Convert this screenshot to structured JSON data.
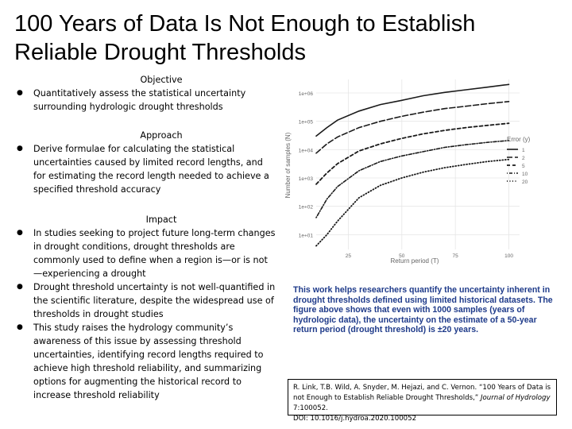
{
  "slide": {
    "title": "100 Years of Data Is Not Enough to Establish Reliable Drought Thresholds",
    "sections": [
      {
        "heading": "Objective",
        "bullets": [
          "Quantitatively assess the statistical uncertainty surrounding hydrologic drought thresholds"
        ]
      },
      {
        "heading": "Approach",
        "bullets": [
          "Derive formulae for calculating the statistical uncertainties caused by limited record lengths, and for estimating the record length needed to achieve a specified threshold accuracy"
        ]
      },
      {
        "heading": "Impact",
        "bullets": [
          "In studies seeking to project future long-term changes in drought conditions, drought thresholds are commonly used to define when a region is—or is not—experiencing a drought",
          "Drought threshold uncertainty is not well-quantified in the scientific literature, despite the widespread use of thresholds in drought studies",
          "This study raises the hydrology community’s awareness of this issue by assessing threshold uncertainties, identifying record lengths required to achieve high threshold reliability, and summarizing options for augmenting the historical record to increase threshold reliability"
        ]
      }
    ],
    "summary": "This work helps researchers quantify the uncertainty inherent in drought thresholds defined using limited historical datasets. The figure above shows that even with 1000 samples (years of hydrologic data), the uncertainty on the estimate of a 50-year return period (drought threshold) is ±20 years.",
    "citation": {
      "authors": "R. Link, T.B. Wild, A. Snyder, M. Hejazi, and C. Vernon. ",
      "title": "“100 Years of Data is not Enough to Establish Reliable Drought Thresholds,” ",
      "journal": "Journal of Hydrology",
      "volume": " 7:100052.",
      "doi": "DOI: 10.1016/j.hydroa.2020.100052"
    }
  },
  "chart_data": {
    "type": "line",
    "xlabel": "Return period (T)",
    "ylabel": "Number of samples (N)",
    "x_ticks": [
      25,
      50,
      75,
      100
    ],
    "xlim": [
      10,
      105
    ],
    "y_scale": "log",
    "y_ticks": [
      "1e+01",
      "1e+02",
      "1e+03",
      "1e+04",
      "1e+05",
      "1e+06"
    ],
    "ylim": [
      3,
      3000000
    ],
    "legend_title": "Error (y)",
    "legend_position": "right",
    "series": [
      {
        "name": "1",
        "style": "solid",
        "x": [
          10,
          15,
          20,
          30,
          40,
          50,
          60,
          70,
          80,
          90,
          100
        ],
        "y": [
          30000,
          60000,
          110000,
          230000,
          390000,
          550000,
          800000,
          1050000,
          1300000,
          1600000,
          2000000
        ]
      },
      {
        "name": "2",
        "style": "longdash",
        "x": [
          10,
          15,
          20,
          30,
          40,
          50,
          60,
          70,
          80,
          90,
          100
        ],
        "y": [
          7500,
          16000,
          28000,
          60000,
          100000,
          150000,
          210000,
          280000,
          340000,
          420000,
          500000
        ]
      },
      {
        "name": "5",
        "style": "dashed",
        "x": [
          10,
          15,
          20,
          30,
          40,
          50,
          60,
          70,
          80,
          90,
          100
        ],
        "y": [
          600,
          1500,
          3200,
          9000,
          16000,
          25000,
          36000,
          48000,
          60000,
          72000,
          85000
        ]
      },
      {
        "name": "10",
        "style": "dotdash",
        "x": [
          10,
          15,
          20,
          30,
          40,
          50,
          60,
          70,
          80,
          90,
          100
        ],
        "y": [
          40,
          180,
          500,
          1800,
          3800,
          6000,
          8500,
          12000,
          15000,
          18000,
          21000
        ]
      },
      {
        "name": "20",
        "style": "dotted",
        "x": [
          10,
          15,
          20,
          30,
          40,
          50,
          60,
          70,
          80,
          90,
          100
        ],
        "y": [
          4,
          10,
          30,
          200,
          550,
          1000,
          1600,
          2300,
          3000,
          3800,
          4500
        ]
      }
    ],
    "grid": true
  }
}
